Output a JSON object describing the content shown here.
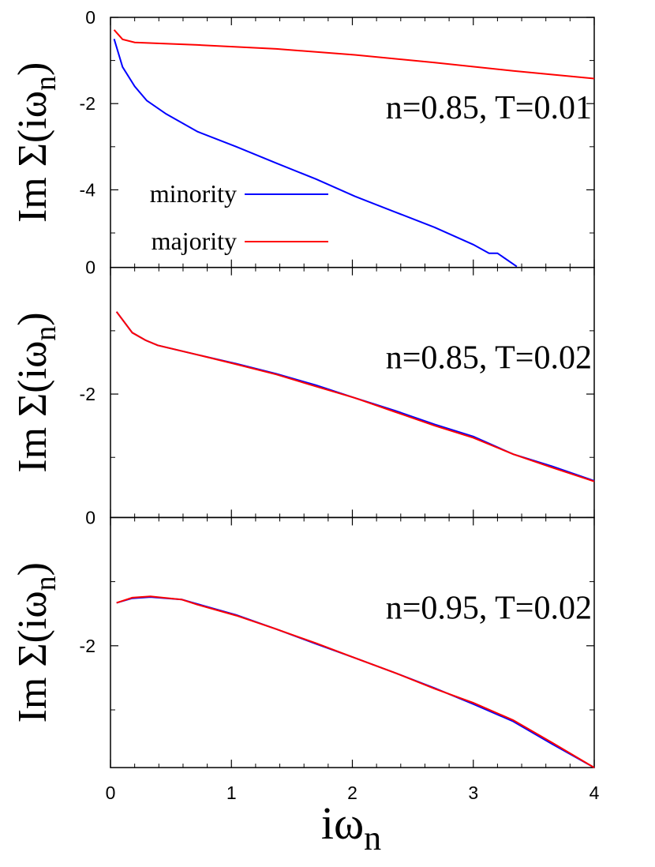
{
  "chart_data": [
    {
      "type": "line",
      "annotation": "n=0.85, T=0.01",
      "ylabel": {
        "text": "Im Σ(iω",
        "sub": "n",
        "close": ")"
      },
      "xlim": [
        0,
        4
      ],
      "xticks": [
        0,
        1,
        2,
        3,
        4
      ],
      "minor_xticks": [
        0.2,
        0.4,
        0.6,
        0.8,
        1.2,
        1.4,
        1.6,
        1.8,
        2.2,
        2.4,
        2.6,
        2.8,
        3.2,
        3.4,
        3.6,
        3.8
      ],
      "ylim": [
        -5.8,
        0
      ],
      "yticks": [
        0,
        -2,
        -4
      ],
      "minor_yticks": [
        -1,
        -3,
        -5
      ],
      "legend": "center-left",
      "series": [
        {
          "name": "minority",
          "color": "#0000ff",
          "x": [
            0.03,
            0.1,
            0.2,
            0.3,
            0.46,
            0.72,
            1.04,
            1.37,
            1.7,
            2.02,
            2.35,
            2.68,
            3.0,
            3.13,
            3.2,
            3.36
          ],
          "values": [
            -0.5,
            -1.15,
            -1.6,
            -1.93,
            -2.24,
            -2.65,
            -3.0,
            -3.38,
            -3.75,
            -4.15,
            -4.51,
            -4.87,
            -5.27,
            -5.47,
            -5.47,
            -5.78
          ]
        },
        {
          "name": "majority",
          "color": "#ff0000",
          "x": [
            0.03,
            0.1,
            0.2,
            0.72,
            1.37,
            2.02,
            2.68,
            3.33,
            4.0
          ],
          "values": [
            -0.29,
            -0.51,
            -0.58,
            -0.64,
            -0.73,
            -0.87,
            -1.05,
            -1.24,
            -1.42
          ]
        }
      ]
    },
    {
      "type": "line",
      "annotation": "n=0.85, T=0.02",
      "ylabel": {
        "text": "Im Σ(iω",
        "sub": "n",
        "close": ")"
      },
      "xlim": [
        0,
        4
      ],
      "xticks": [
        0,
        1,
        2,
        3,
        4
      ],
      "minor_xticks": [
        0.2,
        0.4,
        0.6,
        0.8,
        1.2,
        1.4,
        1.6,
        1.8,
        2.2,
        2.4,
        2.6,
        2.8,
        3.2,
        3.4,
        3.6,
        3.8
      ],
      "ylim": [
        -3.95,
        0
      ],
      "yticks": [
        0,
        -2
      ],
      "minor_yticks": [
        -1,
        -3
      ],
      "series": [
        {
          "name": "minority",
          "color": "#0000ff",
          "x": [
            0.05,
            0.18,
            0.29,
            0.39,
            0.72,
            1.04,
            1.37,
            1.7,
            2.02,
            2.35,
            2.68,
            3.0,
            3.33,
            3.65,
            4.0
          ],
          "values": [
            -0.7,
            -1.03,
            -1.15,
            -1.23,
            -1.38,
            -1.52,
            -1.68,
            -1.86,
            -2.06,
            -2.26,
            -2.48,
            -2.67,
            -2.95,
            -3.14,
            -3.37
          ]
        },
        {
          "name": "majority",
          "color": "#ff0000",
          "x": [
            0.05,
            0.18,
            0.29,
            0.39,
            0.72,
            1.04,
            1.37,
            1.7,
            2.02,
            2.35,
            2.68,
            3.0,
            3.33,
            3.65,
            4.0
          ],
          "values": [
            -0.7,
            -1.03,
            -1.15,
            -1.23,
            -1.38,
            -1.53,
            -1.69,
            -1.88,
            -2.06,
            -2.28,
            -2.5,
            -2.69,
            -2.95,
            -3.16,
            -3.38
          ]
        }
      ]
    },
    {
      "type": "line",
      "annotation": "n=0.95, T=0.02",
      "ylabel": {
        "text": "Im Σ(iω",
        "sub": "n",
        "close": ")"
      },
      "xlim": [
        0,
        4
      ],
      "xticks": [
        0,
        1,
        2,
        3,
        4
      ],
      "minor_xticks": [
        0.2,
        0.4,
        0.6,
        0.8,
        1.2,
        1.4,
        1.6,
        1.8,
        2.2,
        2.4,
        2.6,
        2.8,
        3.2,
        3.4,
        3.6,
        3.8
      ],
      "xlabel": {
        "text": "iω",
        "sub": "n"
      },
      "ylim": [
        -3.9,
        0
      ],
      "yticks": [
        0,
        -2
      ],
      "minor_yticks": [
        -1,
        -3
      ],
      "series": [
        {
          "name": "minority",
          "color": "#0000ff",
          "x": [
            0.05,
            0.18,
            0.33,
            0.59,
            0.72,
            1.04,
            1.37,
            1.7,
            2.02,
            2.35,
            2.68,
            3.0,
            3.33,
            3.65,
            4.0
          ],
          "values": [
            -1.33,
            -1.26,
            -1.24,
            -1.28,
            -1.35,
            -1.52,
            -1.74,
            -1.97,
            -2.19,
            -2.42,
            -2.66,
            -2.91,
            -3.18,
            -3.53,
            -3.9
          ]
        },
        {
          "name": "majority",
          "color": "#ff0000",
          "x": [
            0.05,
            0.18,
            0.33,
            0.59,
            0.72,
            1.04,
            1.37,
            1.7,
            2.02,
            2.35,
            2.68,
            3.0,
            3.33,
            3.65,
            4.0
          ],
          "values": [
            -1.33,
            -1.25,
            -1.23,
            -1.28,
            -1.36,
            -1.53,
            -1.74,
            -1.96,
            -2.19,
            -2.42,
            -2.67,
            -2.89,
            -3.16,
            -3.51,
            -3.9
          ]
        }
      ]
    }
  ]
}
